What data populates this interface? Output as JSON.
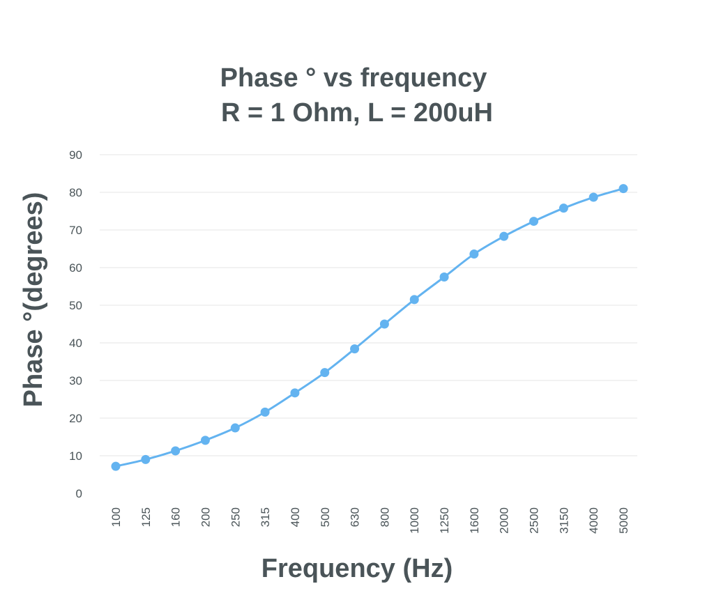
{
  "chart_data": {
    "type": "line",
    "title": [
      "Phase ° vs frequency",
      "R = 1 Ohm, L = 200uH"
    ],
    "xlabel": "Frequency (Hz)",
    "ylabel": "Phase °(degrees)",
    "ylim": [
      0,
      90
    ],
    "yticks": [
      "0",
      "10",
      "20",
      "30",
      "40",
      "50",
      "60",
      "70",
      "80",
      "90"
    ],
    "grid": true,
    "categories": [
      "100",
      "125",
      "160",
      "200",
      "250",
      "315",
      "400",
      "500",
      "630",
      "800",
      "1000",
      "1250",
      "1600",
      "2000",
      "2500",
      "3150",
      "4000",
      "5000"
    ],
    "series": [
      {
        "values": [
          7.2,
          9.0,
          11.3,
          14.1,
          17.4,
          21.6,
          26.7,
          32.1,
          38.4,
          45.0,
          51.5,
          57.5,
          63.6,
          68.3,
          72.3,
          75.8,
          78.7,
          81.0
        ],
        "color": "#63b3f0"
      }
    ]
  }
}
